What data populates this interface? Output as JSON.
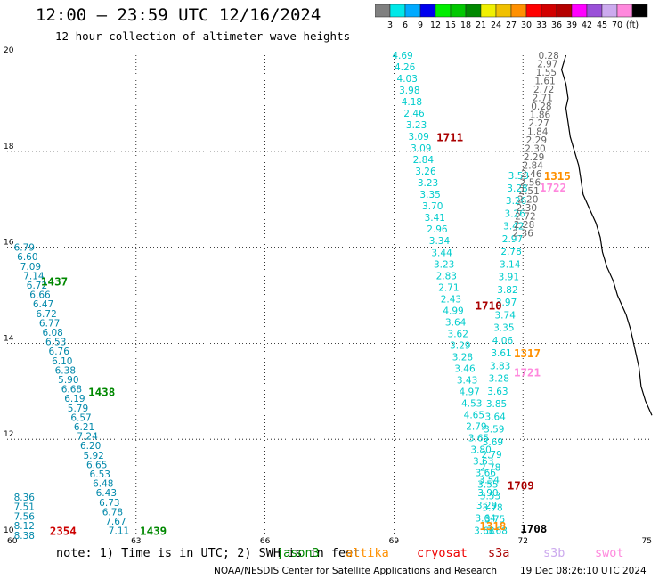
{
  "header": {
    "title": "12:00 – 23:59 UTC 12/16/2024",
    "subtitle": "12 hour collection of altimeter wave heights"
  },
  "colorbar": {
    "colors": [
      "#808080",
      "#00e8e8",
      "#00aaff",
      "#0000ee",
      "#00ee00",
      "#00c800",
      "#008800",
      "#f0f000",
      "#f0c000",
      "#ff9000",
      "#ff0000",
      "#d20000",
      "#b40000",
      "#ff00ff",
      "#9a50d8",
      "#ccaaee",
      "#ff88dd",
      "#000000"
    ],
    "labels": [
      "3",
      "6",
      "9",
      "12",
      "15",
      "18",
      "21",
      "24",
      "27",
      "30",
      "33",
      "36",
      "39",
      "42",
      "45",
      "70",
      "(ft)"
    ]
  },
  "map": {
    "x_range": [
      60,
      75
    ],
    "y_range": [
      10,
      20
    ],
    "x_ticks": [
      "60",
      "63",
      "66",
      "69",
      "72",
      "75"
    ],
    "y_ticks": [
      "20",
      "18",
      "16",
      "14",
      "12",
      "10"
    ]
  },
  "tracks": [
    {
      "name": "track-1437",
      "color": "#0088aa",
      "time_label": "1437",
      "time_color": "#008800",
      "time_at": [
        61.1,
        15.3
      ],
      "start": [
        60.4,
        16.0
      ],
      "end": [
        62.6,
        10.1
      ],
      "values": [
        "6.79",
        "6.60",
        "7.09",
        "7.14",
        "6.72",
        "6.66",
        "6.47",
        "6.72",
        "6.77",
        "6.08",
        "6.53",
        "6.76",
        "6.10",
        "6.38",
        "5.90",
        "6.68",
        "6.19",
        "5.79",
        "6.57",
        "6.21",
        "7.24",
        "6.20",
        "5.92",
        "6.65",
        "6.53",
        "6.48",
        "6.43",
        "6.73",
        "6.78",
        "7.67",
        "7.11"
      ]
    },
    {
      "name": "track-1438-labels",
      "color": "#0088aa",
      "time_label": "1438",
      "time_color": "#008800",
      "time_at": [
        62.2,
        13.0
      ],
      "start": [
        60.4,
        10.8
      ],
      "end": [
        60.4,
        10.0
      ],
      "values": [
        "8.36",
        "7.51",
        "7.56",
        "8.12",
        "8.38"
      ]
    },
    {
      "name": "track-1711",
      "color": "#00cccc",
      "time_label": "1711",
      "time_color": "#aa0000",
      "time_at": [
        70.3,
        18.3
      ],
      "start": [
        69.2,
        20.0
      ],
      "end": [
        71.4,
        10.1
      ],
      "values": [
        "4.69",
        "4.26",
        "4.03",
        "3.98",
        "4.18",
        "2.46",
        "3.23",
        "3.09",
        "3.09",
        "2.84",
        "3.26",
        "3.23",
        "3.35",
        "3.70",
        "3.41",
        "2.96",
        "3.34",
        "3.44",
        "3.23",
        "2.83",
        "2.71",
        "2.43",
        "4.99",
        "3.64",
        "3.62",
        "3.29",
        "3.28",
        "3.46",
        "3.43",
        "4.97",
        "4.53",
        "4.65",
        "2.79",
        "3.65",
        "3.80",
        "3.63",
        "3.66",
        "3.55",
        "3.53",
        "3.78",
        "3.75",
        "3.68"
      ]
    },
    {
      "name": "track-1710",
      "color": "#00cccc",
      "time_label": "1710",
      "time_color": "#aa0000",
      "time_at": [
        71.2,
        14.8
      ],
      "start": [
        71.9,
        17.5
      ],
      "end": [
        71.1,
        10.1
      ],
      "values": [
        "3.53",
        "3.28",
        "3.26",
        "3.26",
        "3.42",
        "2.97",
        "2.78",
        "3.14",
        "3.91",
        "3.82",
        "3.97",
        "3.74",
        "3.35",
        "4.06",
        "3.61",
        "3.83",
        "3.28",
        "3.63",
        "3.85",
        "3.64",
        "3.59",
        "3.69",
        "2.79",
        "2.78",
        "3.54",
        "3.90",
        "3.29",
        "3.64",
        "3.68"
      ]
    },
    {
      "name": "track-1315",
      "color": "#666666",
      "time_label": "1315",
      "time_color": "#ff9000",
      "time_at": [
        72.8,
        17.5
      ],
      "start": [
        72.6,
        20.0
      ],
      "end": [
        72.0,
        16.3
      ],
      "values": [
        "0.28",
        "2.97",
        "1.55",
        "1.61",
        "2.72",
        "2.71",
        "0.28",
        "1.86",
        "2.27",
        "1.84",
        "2.29",
        "2.30",
        "2.29",
        "2.84",
        "2.46",
        "2.56",
        "2.51",
        "2.20",
        "2.30",
        "2.72",
        "2.28",
        "2.36"
      ]
    },
    {
      "name": "track-1722",
      "color": "#ff88dd",
      "time_label": "1722",
      "time_color": "#ff88dd",
      "time_at": [
        72.7,
        17.25
      ],
      "start": [
        72,
        17
      ],
      "end": [
        72,
        17
      ],
      "values": []
    },
    {
      "name": "track-1317",
      "color": "#ff9000",
      "time_label": "1317",
      "time_color": "#ff9000",
      "time_at": [
        72.1,
        13.8
      ],
      "start": [
        72,
        13
      ],
      "end": [
        72,
        13
      ],
      "values": []
    },
    {
      "name": "track-1721",
      "color": "#ff88dd",
      "time_label": "1721",
      "time_color": "#ff88dd",
      "time_at": [
        72.1,
        13.4
      ],
      "start": [
        72,
        13
      ],
      "end": [
        72,
        13
      ],
      "values": []
    },
    {
      "name": "track-1709",
      "color": "#aa0000",
      "time_label": "1709",
      "time_color": "#aa0000",
      "time_at": [
        71.95,
        11.05
      ],
      "start": [
        72,
        11
      ],
      "end": [
        72,
        11
      ],
      "values": []
    },
    {
      "name": "track-1708",
      "color": "#000000",
      "time_label": "1708",
      "time_color": "#000000",
      "time_at": [
        72.25,
        10.15
      ],
      "start": [
        72,
        10
      ],
      "end": [
        72,
        10
      ],
      "values": []
    },
    {
      "name": "track-1318",
      "color": "#ff9000",
      "time_label": "1318",
      "time_color": "#ff9000",
      "time_at": [
        71.3,
        10.2
      ],
      "start": [
        72,
        10
      ],
      "end": [
        72,
        10
      ],
      "values": []
    },
    {
      "name": "track-2354",
      "color": "#aa0000",
      "time_label": "2354",
      "time_color": "#cc0000",
      "time_at": [
        61.3,
        10.1
      ],
      "start": [
        60,
        10
      ],
      "end": [
        60,
        10
      ],
      "values": []
    },
    {
      "name": "track-1439",
      "color": "#008800",
      "time_label": "1439",
      "time_color": "#008800",
      "time_at": [
        63.4,
        10.1
      ],
      "start": [
        60,
        10
      ],
      "end": [
        60,
        10
      ],
      "values": []
    }
  ],
  "coastline": [
    [
      73.0,
      20.0
    ],
    [
      72.9,
      19.7
    ],
    [
      73.0,
      19.4
    ],
    [
      73.05,
      19.1
    ],
    [
      73.0,
      18.9
    ],
    [
      73.05,
      18.6
    ],
    [
      73.1,
      18.3
    ],
    [
      73.2,
      18.0
    ],
    [
      73.3,
      17.7
    ],
    [
      73.35,
      17.4
    ],
    [
      73.4,
      17.1
    ],
    [
      73.55,
      16.8
    ],
    [
      73.7,
      16.5
    ],
    [
      73.8,
      16.2
    ],
    [
      73.85,
      15.9
    ],
    [
      73.95,
      15.6
    ],
    [
      74.1,
      15.3
    ],
    [
      74.2,
      15.0
    ],
    [
      74.4,
      14.6
    ],
    [
      74.5,
      14.3
    ],
    [
      74.6,
      13.9
    ],
    [
      74.7,
      13.5
    ],
    [
      74.75,
      13.1
    ],
    [
      74.85,
      12.8
    ],
    [
      75.0,
      12.5
    ]
  ],
  "note": {
    "text": "note: 1) Time is in UTC; 2) SWH is in feet",
    "missions": [
      {
        "label": "jason3",
        "color": "#008800",
        "x": 310
      },
      {
        "label": "altika",
        "color": "#ff9000",
        "x": 388
      },
      {
        "label": "cryosat",
        "color": "#ee0000",
        "x": 468
      },
      {
        "label": "s3a",
        "color": "#aa0000",
        "x": 548
      },
      {
        "label": "s3b",
        "color": "#ccaaee",
        "x": 610
      },
      {
        "label": "swot",
        "color": "#ff88dd",
        "x": 668
      }
    ]
  },
  "footer": {
    "credit": "NOAA/NESDIS Center for Satellite Applications and Research",
    "timestamp": "19 Dec 08:26:10 UTC 2024"
  }
}
